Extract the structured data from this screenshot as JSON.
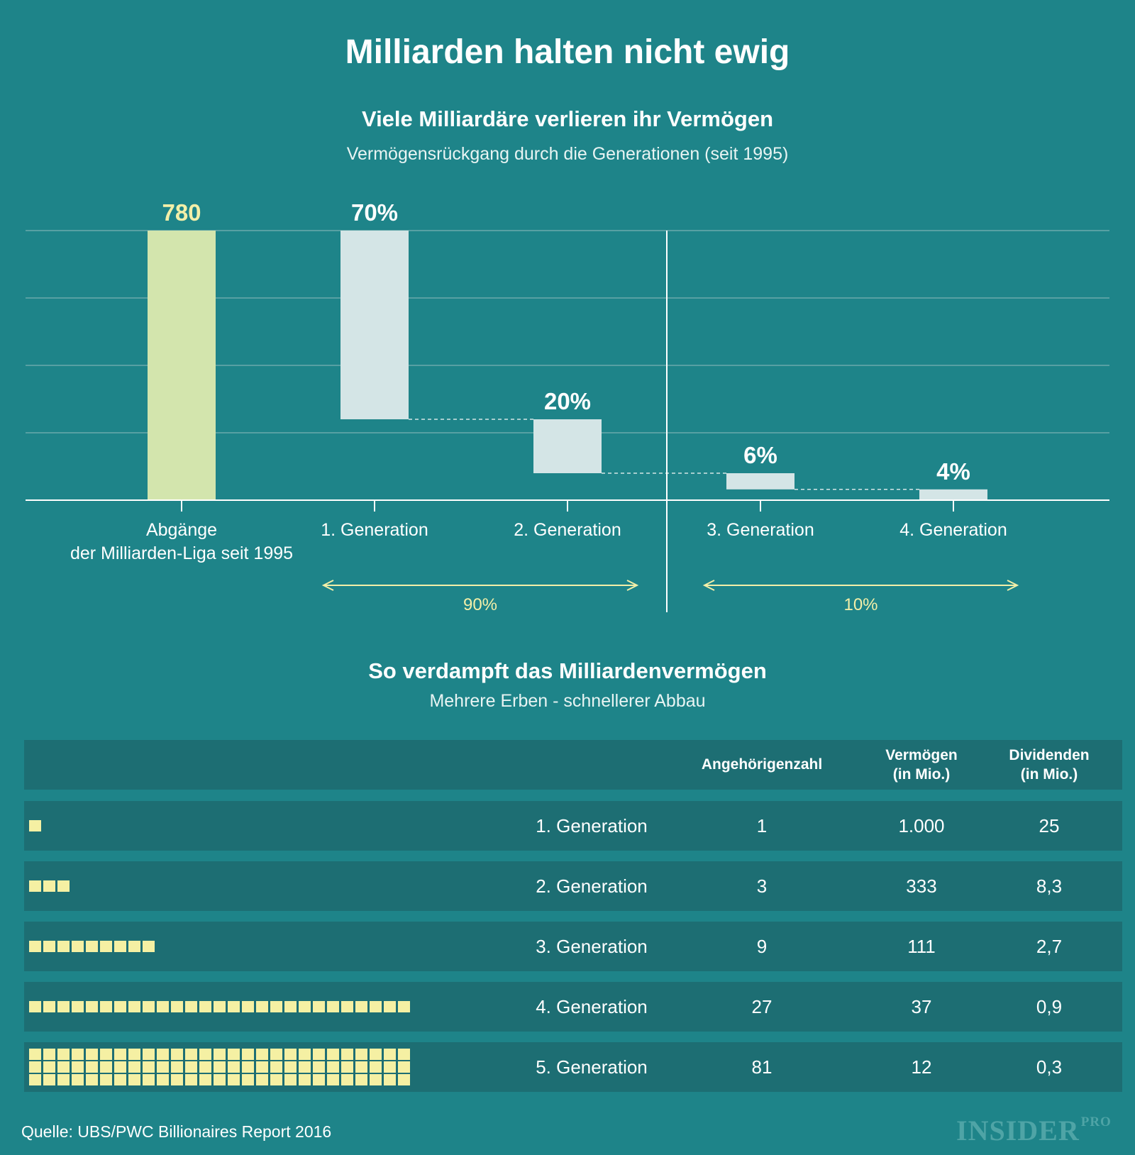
{
  "title": "Milliarden halten nicht ewig",
  "chart_data": {
    "type": "bar",
    "subtype": "waterfall",
    "title": "Viele Milliardäre verlieren ihr Vermögen",
    "subtitle": "Vermögensrückgang durch die Generationen (seit 1995)",
    "categories": [
      "Abgänge\nder Milliarden-Liga seit 1995",
      "1. Generation",
      "2. Generation",
      "3. Generation",
      "4. Generation"
    ],
    "values": [
      780,
      70,
      20,
      6,
      4
    ],
    "data_labels": [
      "780",
      "70%",
      "20%",
      "6%",
      "4%"
    ],
    "total_label": "780",
    "percent_scale": 100,
    "grid": true,
    "groups": [
      {
        "label": "90%",
        "from": "1. Generation",
        "to": "2. Generation"
      },
      {
        "label": "10%",
        "from": "3. Generation",
        "to": "4. Generation"
      }
    ],
    "colors": {
      "total": "#d3e5ad",
      "step": "#d4e5e6",
      "grid": "#6aa9ac",
      "axis": "#ffffff",
      "arrow": "#f3efa8"
    }
  },
  "table_section": {
    "title": "So verdampft das Milliardenvermögen",
    "subtitle": "Mehrere Erben - schnellerer Abbau"
  },
  "table": {
    "headers": {
      "count": "Angehörigenzahl",
      "wealth": "Vermögen\n(in Mio.)",
      "dividends": "Dividenden\n(in Mio.)"
    },
    "rows": [
      {
        "label": "1. Generation",
        "count": "1",
        "wealth": "1.000",
        "dividends": "25",
        "squares": 1
      },
      {
        "label": "2. Generation",
        "count": "3",
        "wealth": "333",
        "dividends": "8,3",
        "squares": 3
      },
      {
        "label": "3. Generation",
        "count": "9",
        "wealth": "111",
        "dividends": "2,7",
        "squares": 9
      },
      {
        "label": "4. Generation",
        "count": "27",
        "wealth": "37",
        "dividends": "0,9",
        "squares": 27
      },
      {
        "label": "5. Generation",
        "count": "81",
        "wealth": "12",
        "dividends": "0,3",
        "squares": 81
      }
    ],
    "square_color": "#f5f0a3"
  },
  "source": "Quelle: UBS/PWC Billionaires Report 2016",
  "logo": {
    "main": "INSIDER",
    "suffix": "PRO"
  }
}
